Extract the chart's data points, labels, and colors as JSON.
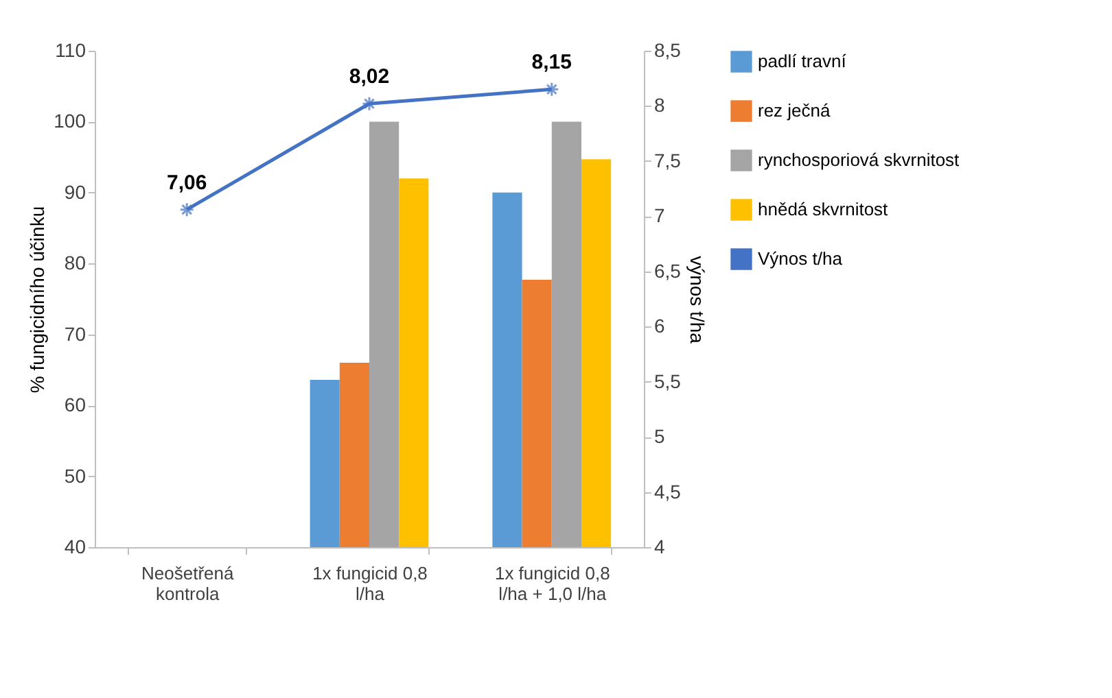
{
  "chart_data": {
    "type": "bar",
    "ylabel": "% fungicidního účinku",
    "y2label": "výnos t/ha",
    "categories": [
      "Neošetřená kontrola",
      "1x fungicid 0,8 l/ha",
      "1x fungicid 0,8 l/ha + 1,0 l/ha"
    ],
    "series": [
      {
        "name": "padlí travní",
        "color": "#5b9bd5",
        "values": [
          40,
          63.6,
          90
        ]
      },
      {
        "name": "rez ječná",
        "color": "#ed7d31",
        "values": [
          40,
          66,
          77.7
        ]
      },
      {
        "name": "rynchosporiová skvrnitost",
        "color": "#a5a5a5",
        "values": [
          40,
          100,
          100
        ]
      },
      {
        "name": "hnědá skvrnitost",
        "color": "#ffc000",
        "values": [
          40,
          92,
          94.7
        ]
      },
      {
        "name": "Výnos t/ha",
        "type": "line",
        "axis": "y2",
        "color": "#4472c4",
        "marker": "cross",
        "values": [
          7.06,
          8.02,
          8.15
        ],
        "value_labels": [
          "7,06",
          "8,02",
          "8,15"
        ]
      }
    ],
    "ylim": [
      40,
      110
    ],
    "yticks": [
      40,
      50,
      60,
      70,
      80,
      90,
      100,
      110
    ],
    "y2lim": [
      4,
      8.5
    ],
    "y2ticks": [
      4,
      {
        "value": 4.5,
        "label": "4,5"
      },
      5,
      {
        "value": 5.5,
        "label": "5,5"
      },
      6,
      {
        "value": 6.5,
        "label": "6,5"
      },
      7,
      {
        "value": 7.5,
        "label": "7,5"
      },
      8,
      {
        "value": 8.5,
        "label": "8,5"
      }
    ],
    "grid": false,
    "legend": "right"
  }
}
